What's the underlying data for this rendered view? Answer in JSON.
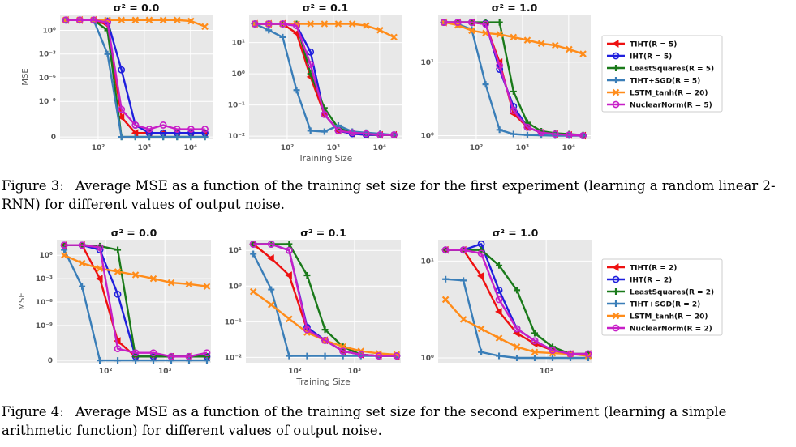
{
  "colors": {
    "TIHT": "#ee1111",
    "IHT": "#1f1fdd",
    "LeastSquares": "#1a7a1a",
    "TIHT+SGD": "#3a7eb8",
    "LSTM_tanh": "#ff8c1a",
    "NuclearNorm": "#c71fc7",
    "panel_bg": "#e8e8e8"
  },
  "figures": [
    {
      "caption_label": "Figure 3:",
      "caption_text": "Average MSE as a function of the training set size for the first experiment (learning a random linear 2-RNN) for different values of output noise.",
      "legend": [
        "TIHT(R = 5)",
        "IHT(R = 5)",
        "LeastSquares(R = 5)",
        "TIHT+SGD(R = 5)",
        "LSTM_tanh(R = 20)",
        "NuclearNorm(R = 5)"
      ],
      "xlabel": "Training Size",
      "ylabel": "MSE",
      "chart_data": [
        {
          "type": "line",
          "title": "σ² = 0.0",
          "xscale": "log",
          "xlim": [
            15,
            30000
          ],
          "xticks": [
            "10²",
            "10³",
            "10⁴"
          ],
          "yticks": [
            "0",
            "10⁻⁹",
            "10⁻⁶",
            "10⁻³",
            "10⁰"
          ],
          "x": [
            20,
            40,
            80,
            160,
            320,
            640,
            1280,
            2560,
            5120,
            10240,
            20480
          ],
          "series": [
            {
              "name": "TIHT(R = 5)",
              "values": [
                20,
                20,
                20,
                5,
                1e-11,
                1e-13,
                1e-13,
                1e-13,
                1e-13,
                1e-13,
                1e-13
              ]
            },
            {
              "name": "IHT(R = 5)",
              "values": [
                20,
                20,
                20,
                15,
                1e-05,
                1e-12,
                1e-13,
                1e-13,
                1e-13,
                1e-13,
                1e-13
              ]
            },
            {
              "name": "LeastSquares(R = 5)",
              "values": [
                20,
                20,
                20,
                1,
                1e-14,
                1e-14,
                1e-14,
                1e-14,
                1e-14,
                1e-14,
                1e-14
              ]
            },
            {
              "name": "TIHT+SGD(R = 5)",
              "values": [
                20,
                20,
                20,
                0.001,
                1e-14,
                1e-14,
                1e-14,
                1e-14,
                1e-14,
                1e-14,
                1e-14
              ]
            },
            {
              "name": "LSTM_tanh(R = 20)",
              "values": [
                20,
                20,
                20,
                20,
                20,
                20,
                20,
                20,
                20,
                15,
                3
              ]
            },
            {
              "name": "NuclearNorm(R = 5)",
              "values": [
                20,
                20,
                20,
                10,
                1e-10,
                1e-12,
                3e-13,
                1e-12,
                3e-13,
                3e-13,
                3e-13
              ]
            }
          ]
        },
        {
          "type": "line",
          "title": "σ² = 0.1",
          "xscale": "log",
          "xlim": [
            15,
            30000
          ],
          "xticks": [
            "10²",
            "10³",
            "10⁴"
          ],
          "yticks": [
            "10⁻²",
            "10⁻¹",
            "10⁰",
            "10¹"
          ],
          "x": [
            20,
            40,
            80,
            160,
            320,
            640,
            1280,
            2560,
            5120,
            10240,
            20480
          ],
          "series": [
            {
              "name": "TIHT(R = 5)",
              "values": [
                40,
                40,
                40,
                20,
                0.8,
                0.05,
                0.015,
                0.012,
                0.011,
                0.011,
                0.011
              ]
            },
            {
              "name": "IHT(R = 5)",
              "values": [
                40,
                40,
                40,
                35,
                5,
                0.05,
                0.015,
                0.012,
                0.011,
                0.011,
                0.011
              ]
            },
            {
              "name": "LeastSquares(R = 5)",
              "values": [
                40,
                40,
                40,
                40,
                1,
                0.08,
                0.018,
                0.013,
                0.012,
                0.011,
                0.011
              ]
            },
            {
              "name": "TIHT+SGD(R = 5)",
              "values": [
                40,
                25,
                15,
                0.3,
                0.015,
                0.014,
                0.022,
                0.014,
                0.013,
                0.012,
                0.011
              ]
            },
            {
              "name": "LSTM_tanh(R = 20)",
              "values": [
                40,
                40,
                40,
                40,
                40,
                40,
                40,
                40,
                35,
                25,
                15
              ]
            },
            {
              "name": "NuclearNorm(R = 5)",
              "values": [
                40,
                40,
                40,
                35,
                2,
                0.05,
                0.015,
                0.013,
                0.012,
                0.011,
                0.011
              ]
            }
          ]
        },
        {
          "type": "line",
          "title": "σ² = 1.0",
          "xscale": "log",
          "xlim": [
            15,
            30000
          ],
          "xticks": [
            "10²",
            "10³",
            "10⁴"
          ],
          "yticks": [
            "10⁰",
            "10¹"
          ],
          "x": [
            20,
            40,
            80,
            160,
            320,
            640,
            1280,
            2560,
            5120,
            10240,
            20480
          ],
          "series": [
            {
              "name": "TIHT(R = 5)",
              "values": [
                35,
                35,
                35,
                33,
                10,
                2,
                1.3,
                1.1,
                1.05,
                1.02,
                1.0
              ]
            },
            {
              "name": "IHT(R = 5)",
              "values": [
                35,
                35,
                35,
                34,
                8,
                2.5,
                1.3,
                1.1,
                1.05,
                1.02,
                1.0
              ]
            },
            {
              "name": "LeastSquares(R = 5)",
              "values": [
                35,
                35,
                35,
                35,
                35,
                4,
                1.5,
                1.15,
                1.08,
                1.05,
                1.02
              ]
            },
            {
              "name": "TIHT+SGD(R = 5)",
              "values": [
                35,
                33,
                28,
                5,
                1.2,
                1.05,
                1.02,
                1.01,
                1.0,
                1.0,
                1.0
              ]
            },
            {
              "name": "LSTM_tanh(R = 20)",
              "values": [
                35,
                32,
                27,
                25,
                24,
                22,
                20,
                18,
                17,
                15,
                13
              ]
            },
            {
              "name": "NuclearNorm(R = 5)",
              "values": [
                35,
                35,
                35,
                33,
                9,
                2.2,
                1.3,
                1.1,
                1.05,
                1.02,
                1.0
              ]
            }
          ]
        }
      ]
    },
    {
      "caption_label": "Figure 4:",
      "caption_text": "Average MSE as a function of the training set size for the second experiment (learning a simple arithmetic function) for different values of output noise.",
      "legend": [
        "TIHT(R = 2)",
        "IHT(R = 2)",
        "LeastSquares(R = 2)",
        "TIHT+SGD(R = 2)",
        "LSTM_tanh(R = 20)",
        "NuclearNorm(R = 2)"
      ],
      "xlabel": "Training Size",
      "ylabel": "MSE",
      "chart_data": [
        {
          "type": "line",
          "title": "σ² = 0.0",
          "xscale": "log",
          "xlim": [
            15,
            6000
          ],
          "xticks": [
            "10²",
            "10³"
          ],
          "yticks": [
            "0",
            "10⁻⁹",
            "10⁻⁶",
            "10⁻³",
            "10⁰"
          ],
          "x": [
            20,
            40,
            80,
            160,
            320,
            640,
            1280,
            2560,
            5120
          ],
          "series": [
            {
              "name": "TIHT(R = 2)",
              "values": [
                20,
                20,
                0.001,
                1e-11,
                1e-13,
                1e-13,
                1e-13,
                1e-13,
                1e-13
              ]
            },
            {
              "name": "IHT(R = 2)",
              "values": [
                20,
                20,
                5,
                1e-05,
                1e-13,
                1e-13,
                1e-13,
                1e-13,
                1e-13
              ]
            },
            {
              "name": "LeastSquares(R = 2)",
              "values": [
                20,
                20,
                15,
                5,
                1e-13,
                1e-13,
                1e-13,
                1e-13,
                1e-13
              ]
            },
            {
              "name": "TIHT+SGD(R = 2)",
              "values": [
                5,
                0.0001,
                1e-14,
                1e-14,
                1e-14,
                1e-14,
                1e-14,
                1e-14,
                1e-14
              ]
            },
            {
              "name": "LSTM_tanh(R = 20)",
              "values": [
                1,
                0.1,
                0.02,
                0.008,
                0.003,
                0.001,
                0.0003,
                0.0002,
                0.0001
              ]
            },
            {
              "name": "NuclearNorm(R = 2)",
              "values": [
                20,
                20,
                10,
                1e-12,
                3e-13,
                3e-13,
                1e-13,
                1e-13,
                3e-13
              ]
            }
          ]
        },
        {
          "type": "line",
          "title": "σ² = 0.1",
          "xscale": "log",
          "xlim": [
            15,
            6000
          ],
          "xticks": [
            "10²",
            "10³"
          ],
          "yticks": [
            "10⁻²",
            "10⁻¹",
            "10⁰",
            "10¹"
          ],
          "x": [
            20,
            40,
            80,
            160,
            320,
            640,
            1280,
            2560,
            5120
          ],
          "series": [
            {
              "name": "TIHT(R = 2)",
              "values": [
                15,
                6,
                2,
                0.06,
                0.03,
                0.015,
                0.012,
                0.011,
                0.011
              ]
            },
            {
              "name": "IHT(R = 2)",
              "values": [
                15,
                15,
                10,
                0.07,
                0.03,
                0.015,
                0.012,
                0.011,
                0.011
              ]
            },
            {
              "name": "LeastSquares(R = 2)",
              "values": [
                15,
                15,
                15,
                2,
                0.06,
                0.02,
                0.012,
                0.011,
                0.011
              ]
            },
            {
              "name": "TIHT+SGD(R = 2)",
              "values": [
                8,
                0.8,
                0.011,
                0.011,
                0.011,
                0.011,
                0.011,
                0.011,
                0.011
              ]
            },
            {
              "name": "LSTM_tanh(R = 20)",
              "values": [
                0.7,
                0.3,
                0.12,
                0.05,
                0.03,
                0.02,
                0.015,
                0.013,
                0.012
              ]
            },
            {
              "name": "NuclearNorm(R = 2)",
              "values": [
                15,
                15,
                10,
                0.06,
                0.03,
                0.015,
                0.012,
                0.011,
                0.011
              ]
            }
          ]
        },
        {
          "type": "line",
          "title": "σ² = 1.0",
          "xscale": "log",
          "xlim": [
            15,
            6000
          ],
          "xticks": [
            "10³"
          ],
          "yticks": [
            "10⁰",
            "10¹"
          ],
          "x": [
            20,
            40,
            80,
            160,
            320,
            640,
            1280,
            2560,
            5120
          ],
          "series": [
            {
              "name": "TIHT(R = 2)",
              "values": [
                13,
                13,
                7,
                3,
                1.8,
                1.4,
                1.2,
                1.1,
                1.1
              ]
            },
            {
              "name": "IHT(R = 2)",
              "values": [
                13,
                13,
                15,
                5,
                2,
                1.5,
                1.2,
                1.1,
                1.1
              ]
            },
            {
              "name": "LeastSquares(R = 2)",
              "values": [
                13,
                13,
                13,
                9,
                5,
                1.8,
                1.3,
                1.1,
                1.1
              ]
            },
            {
              "name": "TIHT+SGD(R = 2)",
              "values": [
                6.5,
                6.3,
                1.15,
                1.05,
                1.0,
                1.0,
                1.0,
                1.0,
                1.0
              ]
            },
            {
              "name": "LSTM_tanh(R = 20)",
              "values": [
                4,
                2.5,
                2,
                1.6,
                1.3,
                1.15,
                1.12,
                1.1,
                1.05
              ]
            },
            {
              "name": "NuclearNorm(R = 2)",
              "values": [
                13,
                13,
                12,
                4,
                2,
                1.5,
                1.2,
                1.1,
                1.1
              ]
            }
          ]
        }
      ]
    }
  ]
}
